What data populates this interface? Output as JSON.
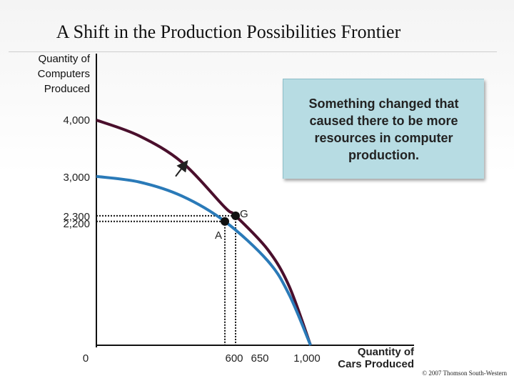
{
  "slide": {
    "title": "A Shift in the Production Possibilities Frontier",
    "callout": "Something changed that caused there to be more resources in computer production.",
    "copyright": "© 2007 Thomson South-Western"
  },
  "chart_data": {
    "type": "line",
    "ylabel_lines": [
      "Quantity of",
      "Computers",
      "Produced"
    ],
    "xlabel_lines": [
      "Quantity of",
      "Cars Produced"
    ],
    "xlim": [
      0,
      1000
    ],
    "ylim": [
      0,
      4000
    ],
    "x_ticks": [
      "0",
      "600",
      "650",
      "1,000"
    ],
    "y_ticks": [
      "4,000",
      "3,000",
      "2,300",
      "2,200"
    ],
    "series": [
      {
        "color": "#4a0f2c",
        "x": [
          0,
          200,
          400,
          600,
          650,
          800,
          900,
          1000
        ],
        "y": [
          4000,
          3720,
          3250,
          2450,
          2300,
          1700,
          1050,
          0
        ]
      },
      {
        "color": "#2a7ab8",
        "x": [
          0,
          200,
          400,
          600,
          800,
          900,
          1000
        ],
        "y": [
          3000,
          2900,
          2650,
          2200,
          1500,
          900,
          0
        ]
      }
    ],
    "points": [
      {
        "label": "G",
        "x": 650,
        "y": 2300
      },
      {
        "label": "A",
        "x": 600,
        "y": 2200
      }
    ],
    "shift_arrow": {
      "from": [
        370,
        3000
      ],
      "to": [
        420,
        3250
      ]
    }
  }
}
